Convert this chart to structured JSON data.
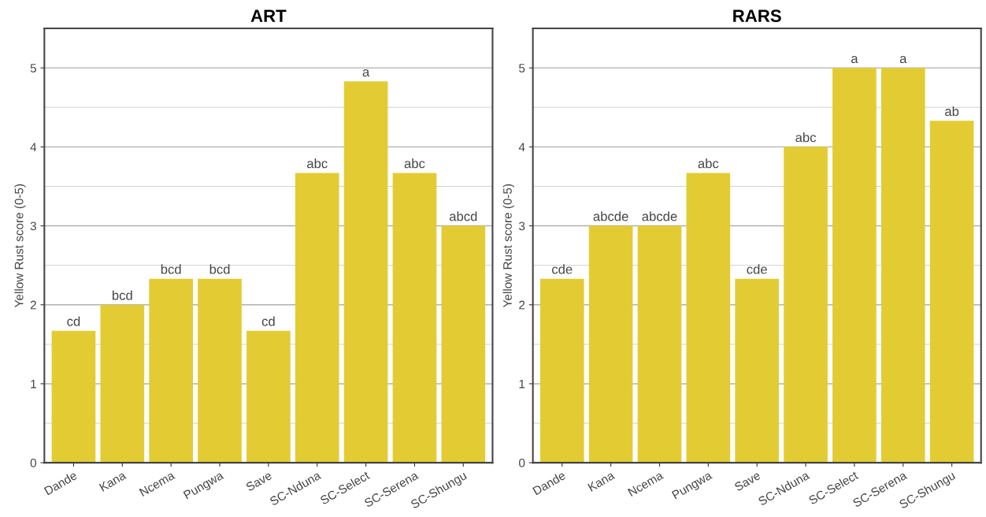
{
  "chart_data": [
    {
      "type": "bar",
      "title": "ART",
      "ylabel": "Yellow Rust score (0-5)",
      "categories": [
        "Dande",
        "Kana",
        "Ncema",
        "Pungwa",
        "Save",
        "SC-Nduna",
        "SC-Select",
        "SC-Serena",
        "SC-Shungu"
      ],
      "values": [
        1.67,
        2.0,
        2.33,
        2.33,
        1.67,
        3.67,
        4.83,
        3.67,
        3.0
      ],
      "color": "#e3cc33",
      "value_labels": [
        "cd",
        "bcd",
        "bcd",
        "bcd",
        "cd",
        "abc",
        "a",
        "abc",
        "abcd"
      ],
      "ylim": [
        0,
        5.5
      ],
      "yticks": [
        0,
        {
          "value": 0.5,
          "label": null
        },
        1,
        {
          "value": 1.5,
          "label": null
        },
        2,
        {
          "value": 2.5,
          "label": null
        },
        3,
        {
          "value": 3.5,
          "label": null
        },
        4,
        {
          "value": 4.5,
          "label": null
        },
        5
      ],
      "grid": "y"
    },
    {
      "type": "bar",
      "title": "RARS",
      "ylabel": "Yellow Rust score (0-5)",
      "categories": [
        "Dande",
        "Kana",
        "Ncema",
        "Pungwa",
        "Save",
        "SC-Nduna",
        "SC-Select",
        "SC-Serena",
        "SC-Shungu"
      ],
      "values": [
        2.33,
        3.0,
        3.0,
        3.67,
        2.33,
        4.0,
        5.0,
        5.0,
        4.33
      ],
      "color": "#e3cc33",
      "value_labels": [
        "cde",
        "abcde",
        "abcde",
        "abc",
        "cde",
        "abc",
        "a",
        "a",
        "ab"
      ],
      "ylim": [
        0,
        5.5
      ],
      "yticks": [
        0,
        {
          "value": 0.5,
          "label": null
        },
        1,
        {
          "value": 1.5,
          "label": null
        },
        2,
        {
          "value": 2.5,
          "label": null
        },
        3,
        {
          "value": 3.5,
          "label": null
        },
        4,
        {
          "value": 4.5,
          "label": null
        },
        5
      ],
      "grid": "y"
    }
  ]
}
